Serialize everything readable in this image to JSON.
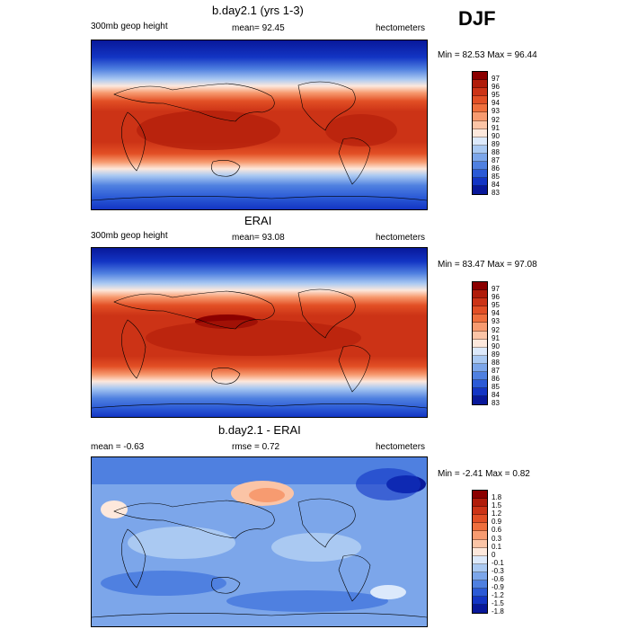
{
  "season": "DJF",
  "colors": {
    "scale_abs": [
      "#8b0000",
      "#b01c0a",
      "#cc3316",
      "#e24f25",
      "#ef6f3d",
      "#f79b70",
      "#fbc4a6",
      "#fde8dc",
      "#dce9fb",
      "#aac9f2",
      "#7ca6ea",
      "#4f80e0",
      "#2b5ad6",
      "#1335c4",
      "#08189a"
    ],
    "scale_diff": [
      "#8b0000",
      "#b01c0a",
      "#cc3316",
      "#e24f25",
      "#ef6f3d",
      "#f79b70",
      "#fbc4a6",
      "#fde8dc",
      "#dce9fb",
      "#aac9f2",
      "#7ca6ea",
      "#4f80e0",
      "#2b5ad6",
      "#1335c4",
      "#08189a"
    ]
  },
  "panels": [
    {
      "title": "b.day2.1 (yrs 1-3)",
      "left_label": "300mb geop height",
      "center_label": "mean=  92.45",
      "right_label": "hectometers",
      "stats": "Min =  82.53 Max =  96.44",
      "colorbar_labels": [
        "97",
        "96",
        "95",
        "94",
        "93",
        "92",
        "91",
        "90",
        "89",
        "88",
        "87",
        "86",
        "85",
        "84",
        "83"
      ]
    },
    {
      "title": "ERAI",
      "left_label": "300mb geop height",
      "center_label": "mean=  93.08",
      "right_label": "hectometers",
      "stats": "Min =  83.47 Max =  97.08",
      "colorbar_labels": [
        "97",
        "96",
        "95",
        "94",
        "93",
        "92",
        "91",
        "90",
        "89",
        "88",
        "87",
        "86",
        "85",
        "84",
        "83"
      ]
    },
    {
      "title": "b.day2.1 - ERAI",
      "left_label": "mean =  -0.63",
      "center_label": "rmse =   0.72",
      "right_label": "hectometers",
      "stats": "Min =  -2.41 Max =   0.82",
      "colorbar_labels": [
        "1.8",
        "1.5",
        "1.2",
        "0.9",
        "0.6",
        "0.3",
        "0.1",
        "0",
        "-0.1",
        "-0.3",
        "-0.6",
        "-0.9",
        "-1.2",
        "-1.5",
        "-1.8"
      ]
    }
  ]
}
